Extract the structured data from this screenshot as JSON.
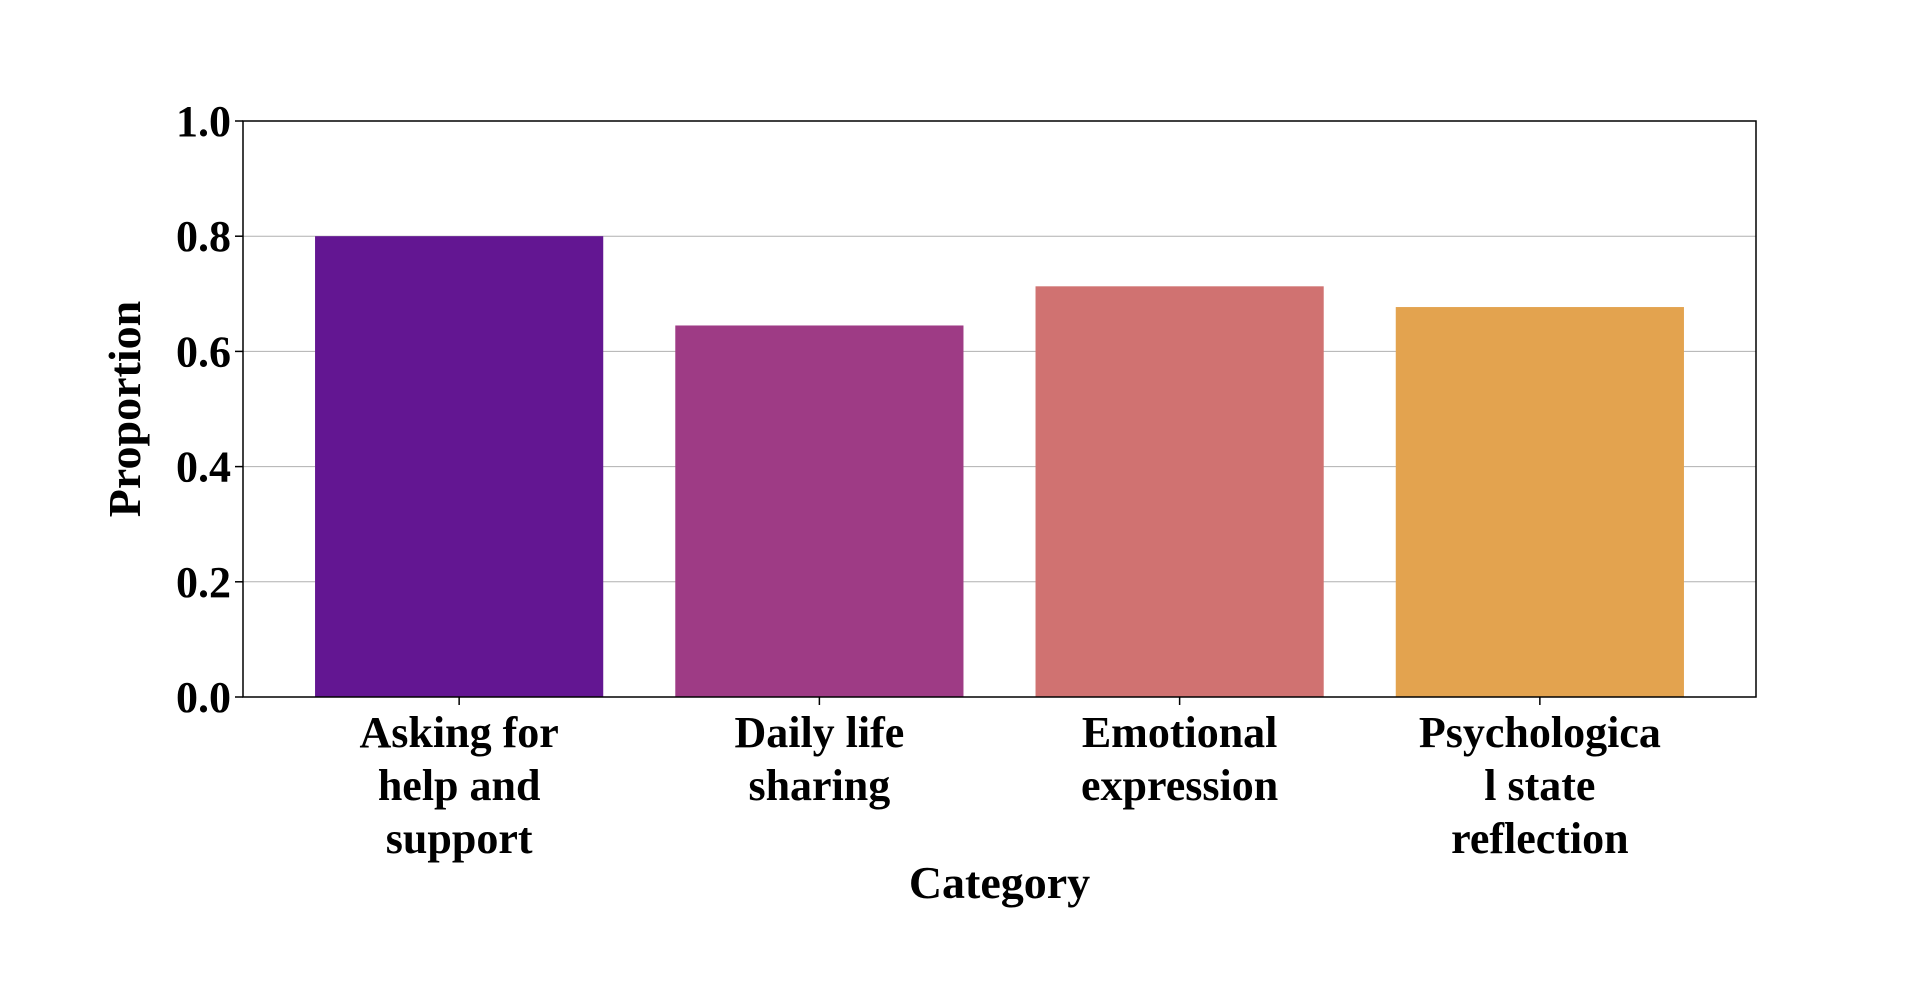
{
  "chart_data": {
    "type": "bar",
    "title": "",
    "xlabel": "Category",
    "ylabel": "Proportion",
    "ylim": [
      0,
      1.0
    ],
    "yticks": [
      "0.0",
      "0.2",
      "0.4",
      "0.6",
      "0.8",
      "1.0"
    ],
    "grid": true,
    "categories": [
      [
        "Asking for",
        "help and",
        "support"
      ],
      [
        "Daily life",
        "sharing"
      ],
      [
        "Emotional",
        "expression"
      ],
      [
        "Psychologica",
        "l state",
        "reflection"
      ]
    ],
    "values": [
      0.8,
      0.645,
      0.713,
      0.677
    ],
    "colors": [
      "#631692",
      "#9e3b85",
      "#d07271",
      "#e3a34f"
    ]
  }
}
